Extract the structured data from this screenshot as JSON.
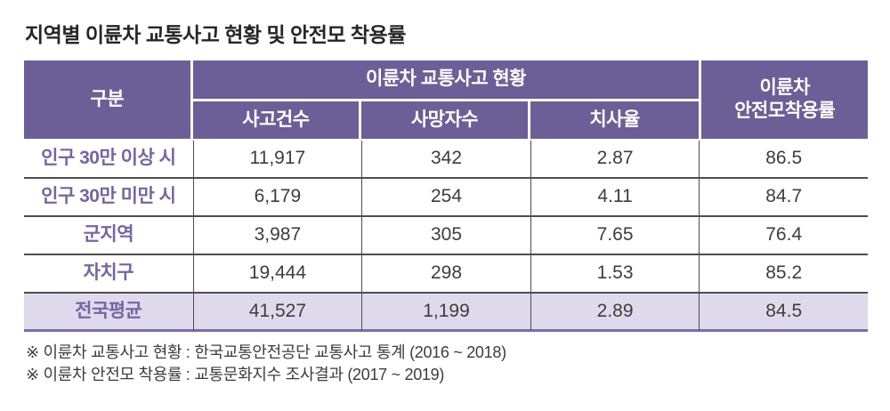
{
  "title": "지역별 이륜차 교통사고 현황 및 안전모 착용률",
  "chart_data": {
    "type": "table",
    "title": "지역별 이륜차 교통사고 현황 및 안전모 착용률",
    "header": {
      "row_label": "구분",
      "group_label": "이륜차 교통사고 현황",
      "sub_columns": [
        "사고건수",
        "사망자수",
        "치사율"
      ],
      "helmet_label_line1": "이륜차",
      "helmet_label_line2": "안전모착용률"
    },
    "rows": [
      {
        "label": "인구 30만 이상 시",
        "accidents": "11,917",
        "deaths": "342",
        "fatality_rate": "2.87",
        "helmet_rate": "86.5"
      },
      {
        "label": "인구 30만 미만 시",
        "accidents": "6,179",
        "deaths": "254",
        "fatality_rate": "4.11",
        "helmet_rate": "84.7"
      },
      {
        "label": "군지역",
        "accidents": "3,987",
        "deaths": "305",
        "fatality_rate": "7.65",
        "helmet_rate": "76.4"
      },
      {
        "label": "자치구",
        "accidents": "19,444",
        "deaths": "298",
        "fatality_rate": "1.53",
        "helmet_rate": "85.2"
      },
      {
        "label": "전국평균",
        "accidents": "41,527",
        "deaths": "1,199",
        "fatality_rate": "2.89",
        "helmet_rate": "84.5"
      }
    ],
    "summary_row_label": "전국평균",
    "layout": {
      "summary_row_highlighted": true,
      "grid": "dark horizontal and vertical rules in body, white gaps in header"
    }
  },
  "footnotes": [
    "※ 이륜차 교통사고 현황 : 한국교통안전공단 교통사고 통계 (2016 ~ 2018)",
    "※ 이륜차 안전모 착용률 : 교통문화지수 조사결과 (2017 ~ 2019)"
  ],
  "colors": {
    "header_bg": "#6c5f97",
    "header_text": "#ffffff",
    "row_label_text": "#7466a2",
    "summary_row_bg": "#dedaeb",
    "bottom_border": "#7a6ca8",
    "body_rule": "#4d4d4d",
    "data_text": "#3d3d3d",
    "title_text": "#262626"
  }
}
